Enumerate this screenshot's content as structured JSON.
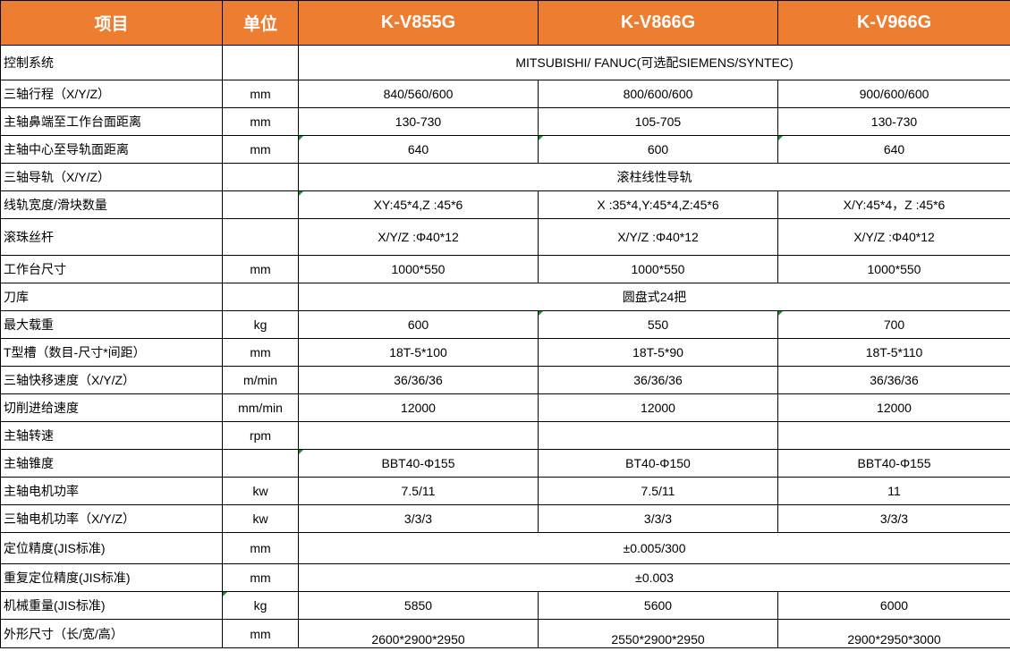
{
  "header": {
    "item": "项目",
    "unit": "单位",
    "models": [
      "K-V855G",
      "K-V866G",
      "K-V966G"
    ]
  },
  "colors": {
    "header_bg": "#ED7D31",
    "header_text": "#FFFFFF"
  },
  "rows": [
    {
      "label": "控制系统",
      "unit": "",
      "merged": "MITSUBISHI/ FANUC(可选配SIEMENS/SYNTEC)"
    },
    {
      "label": "三轴行程（X/Y/Z）",
      "unit": "mm",
      "values": [
        "840/560/600",
        "800/600/600",
        "900/600/600"
      ]
    },
    {
      "label": "主轴鼻端至工作台面距离",
      "unit": "mm",
      "values": [
        "130-730",
        "105-705",
        "130-730"
      ]
    },
    {
      "label": "主轴中心至导轨面距离",
      "unit": "mm",
      "values": [
        "640",
        "600",
        "640"
      ]
    },
    {
      "label": "三轴导轨（X/Y/Z）",
      "unit": "",
      "merged": "滚柱线性导轨"
    },
    {
      "label": "线轨宽度/滑块数量",
      "unit": "",
      "values": [
        "XY:45*4,Z :45*6",
        "X :35*4,Y:45*4,Z:45*6",
        "X/Y:45*4，Z :45*6"
      ]
    },
    {
      "label": "滚珠丝杆",
      "unit": "",
      "values": [
        "X/Y/Z :Φ40*12",
        "X/Y/Z :Φ40*12",
        "X/Y/Z :Φ40*12"
      ]
    },
    {
      "label": "工作台尺寸",
      "unit": "mm",
      "values": [
        "1000*550",
        "1000*550",
        "1000*550"
      ]
    },
    {
      "label": "刀库",
      "unit": "",
      "merged": "圆盘式24把"
    },
    {
      "label": "最大载重",
      "unit": "kg",
      "values": [
        "600",
        "550",
        "700"
      ]
    },
    {
      "label": "T型槽（数目-尺寸*间距）",
      "unit": "mm",
      "values": [
        "18T-5*100",
        "18T-5*90",
        "18T-5*110"
      ]
    },
    {
      "label": "三轴快移速度（X/Y/Z）",
      "unit": "m/min",
      "values": [
        "36/36/36",
        "36/36/36",
        "36/36/36"
      ]
    },
    {
      "label": "切削进给速度",
      "unit": "mm/min",
      "values": [
        "12000",
        "12000",
        "12000"
      ]
    },
    {
      "label": "主轴转速",
      "unit": "rpm",
      "values": [
        "",
        "",
        ""
      ]
    },
    {
      "label": "主轴锥度",
      "unit": "",
      "values": [
        "BBT40-Φ155",
        "BT40-Φ150",
        "BBT40-Φ155"
      ]
    },
    {
      "label": "主轴电机功率",
      "unit": "kw",
      "values": [
        "7.5/11",
        "7.5/11",
        "11"
      ]
    },
    {
      "label": "三轴电机功率（X/Y/Z）",
      "unit": "kw",
      "values": [
        "3/3/3",
        "3/3/3",
        "3/3/3"
      ]
    },
    {
      "label": "定位精度(JIS标准)",
      "unit": "mm",
      "merged": "±0.005/300"
    },
    {
      "label": "重复定位精度(JIS标准)",
      "unit": "mm",
      "merged": "±0.003"
    },
    {
      "label": "机械重量(JIS标准)",
      "unit": "kg",
      "values": [
        "5850",
        "5600",
        "6000"
      ]
    },
    {
      "label": "外形尺寸（长/宽/高）",
      "unit": "mm",
      "values": [
        "2600*2900*2950",
        "2550*2900*2950",
        "2900*2950*3000"
      ]
    }
  ]
}
